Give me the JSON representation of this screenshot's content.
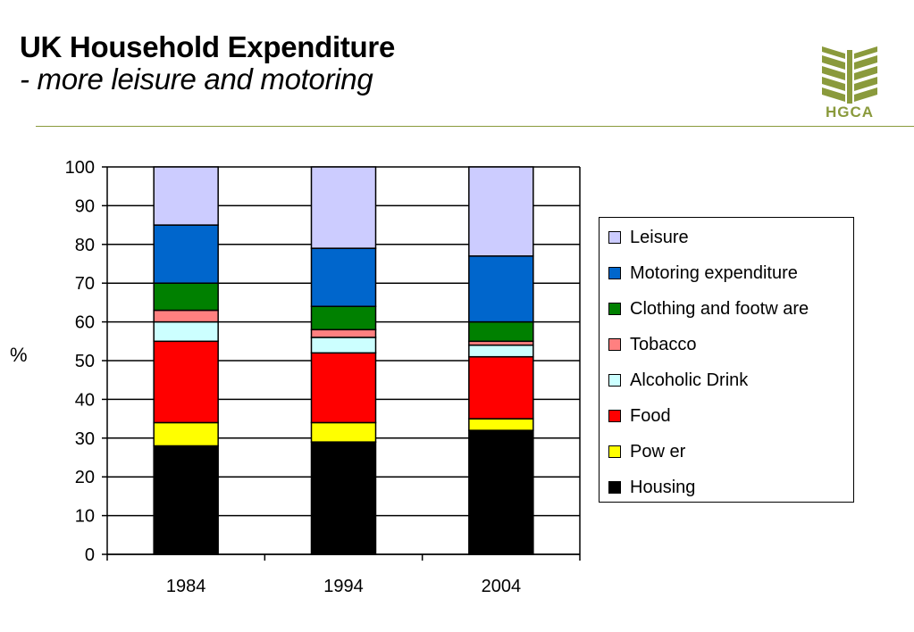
{
  "page": {
    "title": "UK Household Expenditure",
    "subtitle": "- more leisure and motoring"
  },
  "logo": {
    "text": "HGCA",
    "icon": "wheat-sheaf-icon",
    "color": "#8a9a3c"
  },
  "chart_data": {
    "type": "bar",
    "stacked": true,
    "categories": [
      "1984",
      "1994",
      "2004"
    ],
    "ylabel": "%",
    "xlabel": "",
    "ylim": [
      0,
      100
    ],
    "yticks": [
      0,
      10,
      20,
      30,
      40,
      50,
      60,
      70,
      80,
      90,
      100
    ],
    "grid": true,
    "legend_position": "right",
    "series": [
      {
        "name": "Housing",
        "color": "#000000",
        "values": [
          28,
          29,
          32
        ]
      },
      {
        "name": "Pow er",
        "color": "#ffff00",
        "values": [
          6,
          5,
          3
        ]
      },
      {
        "name": "Food",
        "color": "#ff0000",
        "values": [
          21,
          18,
          16
        ]
      },
      {
        "name": "Alcoholic Drink",
        "color": "#ccffff",
        "values": [
          5,
          4,
          3
        ]
      },
      {
        "name": "Tobacco",
        "color": "#ff8080",
        "values": [
          3,
          2,
          1
        ]
      },
      {
        "name": "Clothing and footw are",
        "color": "#008000",
        "values": [
          7,
          6,
          5
        ]
      },
      {
        "name": "Motoring expenditure",
        "color": "#0066cc",
        "values": [
          15,
          15,
          17
        ]
      },
      {
        "name": "Leisure",
        "color": "#ccccff",
        "values": [
          15,
          21,
          23
        ]
      }
    ]
  }
}
